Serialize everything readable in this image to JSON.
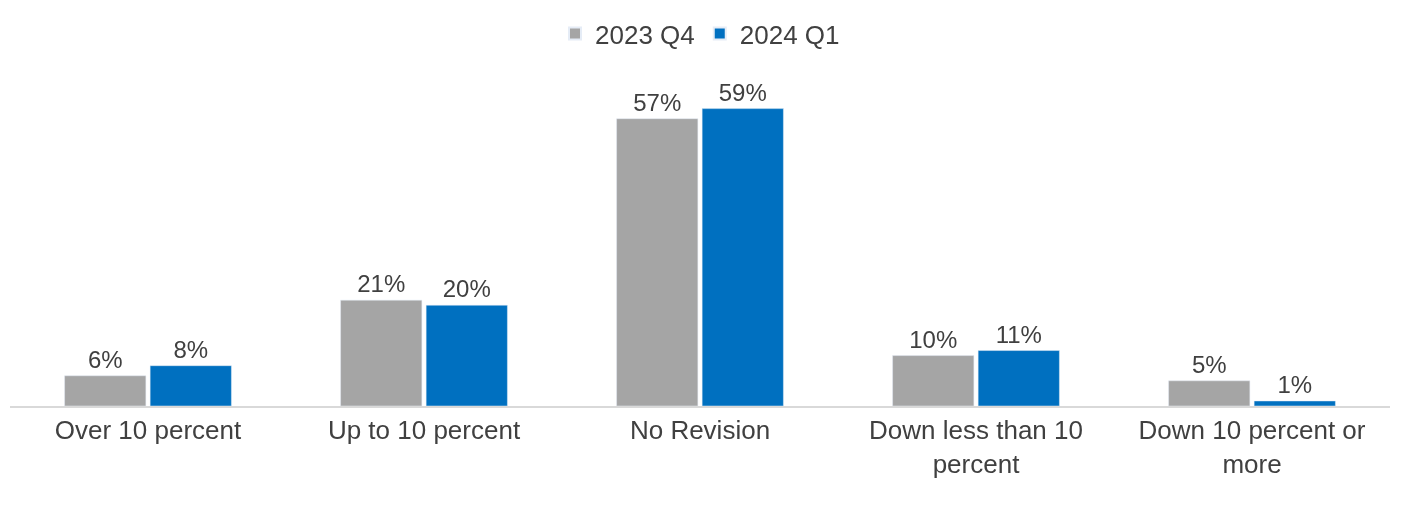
{
  "chart_data": {
    "type": "bar",
    "categories": [
      "Over 10 percent",
      "Up to 10 percent",
      "No Revision",
      "Down less than 10 percent",
      "Down 10 percent or more"
    ],
    "series": [
      {
        "name": "2023 Q4",
        "color": "#a5a5a5",
        "values": [
          6,
          21,
          57,
          10,
          5
        ],
        "value_labels": [
          "6%",
          "21%",
          "57%",
          "10%",
          "5%"
        ]
      },
      {
        "name": "2024 Q1",
        "color": "#0070c0",
        "values": [
          8,
          20,
          59,
          11,
          1
        ],
        "value_labels": [
          "8%",
          "20%",
          "59%",
          "11%",
          "1%"
        ]
      }
    ],
    "legend": "top"
  }
}
